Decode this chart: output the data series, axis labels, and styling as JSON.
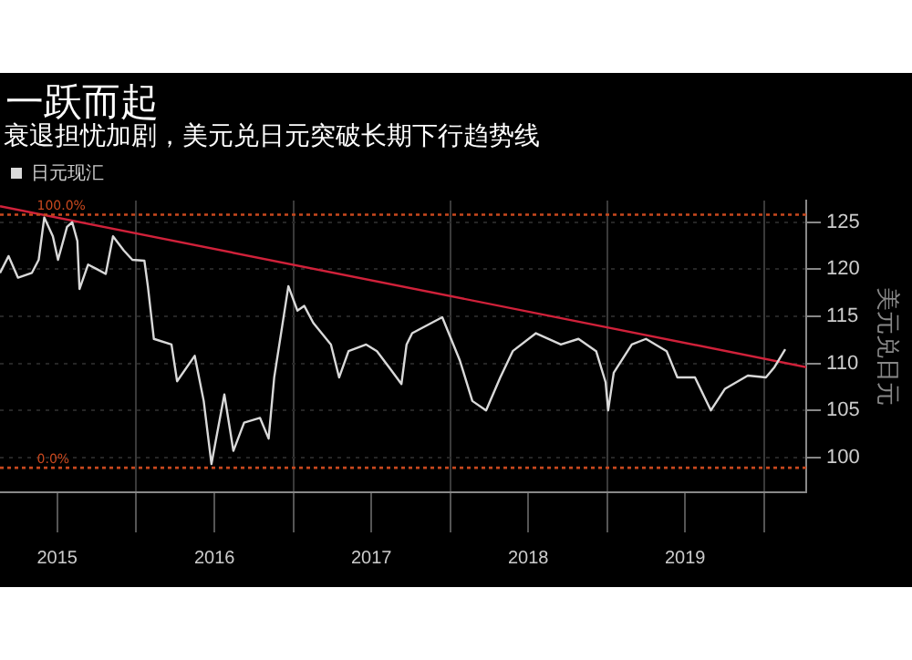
{
  "chart_data": {
    "type": "line",
    "title": "一跃而起",
    "subtitle": "衰退担忧加剧，美元兑日元突破长期下行趋势线",
    "ylabel": "美元兑日元",
    "legend": "top left",
    "grid": true,
    "marker": "none",
    "xlim": [
      "2015-02-18",
      "2020-04-08"
    ],
    "xticks": [
      {
        "value": "2015-07-01",
        "label": "2015"
      },
      {
        "value": "2016-01-01",
        "label": null
      },
      {
        "value": "2016-07-01",
        "label": "2016"
      },
      {
        "value": "2017-01-01",
        "label": null
      },
      {
        "value": "2017-07-01",
        "label": "2017"
      },
      {
        "value": "2018-01-01",
        "label": null
      },
      {
        "value": "2018-07-01",
        "label": "2018"
      },
      {
        "value": "2019-01-01",
        "label": null
      },
      {
        "value": "2019-07-01",
        "label": "2019"
      },
      {
        "value": "2020-01-01",
        "label": null
      }
    ],
    "ylim": [
      96.3,
      127.3
    ],
    "yticks": [
      100,
      105,
      110,
      115,
      120,
      125
    ],
    "ref_lines": [
      {
        "axis": "y",
        "value": 125.8,
        "color": "#c8481e",
        "line_style": "dotted"
      },
      {
        "axis": "y",
        "value": 98.9,
        "color": "#c8481e",
        "line_style": "dotted"
      }
    ],
    "annotations": [
      {
        "text": "100.0%",
        "x": "2015-05-15",
        "y": 125.8
      },
      {
        "text": "0.0%",
        "x": "2015-05-15",
        "y": 98.9
      }
    ],
    "series": [
      {
        "name": "日元现汇",
        "color": "#d9d9d9",
        "x": [
          "2015-02-18",
          "2015-03-10",
          "2015-04-01",
          "2015-05-03",
          "2015-05-19",
          "2015-06-01",
          "2015-06-21",
          "2015-07-03",
          "2015-07-24",
          "2015-08-05",
          "2015-08-17",
          "2015-08-22",
          "2015-09-11",
          "2015-10-02",
          "2015-10-22",
          "2015-11-08",
          "2015-12-03",
          "2015-12-23",
          "2016-01-20",
          "2016-01-28",
          "2016-02-11",
          "2016-03-23",
          "2016-04-05",
          "2016-05-16",
          "2016-06-06",
          "2016-06-24",
          "2016-07-24",
          "2016-08-14",
          "2016-09-08",
          "2016-10-15",
          "2016-11-04",
          "2016-11-17",
          "2016-12-20",
          "2017-01-10",
          "2017-01-26",
          "2017-02-16",
          "2017-03-29",
          "2017-04-17",
          "2017-05-09",
          "2017-06-19",
          "2017-07-14",
          "2017-08-11",
          "2017-09-09",
          "2017-09-21",
          "2017-10-04",
          "2017-12-13",
          "2018-01-23",
          "2018-02-21",
          "2018-03-25",
          "2018-04-27",
          "2018-05-26",
          "2018-07-19",
          "2018-09-15",
          "2018-10-26",
          "2018-12-06",
          "2018-12-28",
          "2019-01-03",
          "2019-01-16",
          "2019-02-27",
          "2019-04-01",
          "2019-05-19",
          "2019-06-13",
          "2019-07-24",
          "2019-08-30",
          "2019-10-02",
          "2019-11-24",
          "2020-01-05",
          "2020-01-25",
          "2020-02-19"
        ],
        "values": [
          119.6,
          121.4,
          119.1,
          119.6,
          121,
          125.5,
          123.5,
          121,
          124.5,
          125,
          123,
          117.9,
          120.5,
          120,
          119.5,
          123.5,
          122,
          121,
          120.9,
          118.2,
          112.6,
          112,
          108.1,
          110.8,
          106,
          99.3,
          106.7,
          100.7,
          103.7,
          104.2,
          102,
          108.5,
          118.2,
          115.6,
          116.1,
          114.3,
          112,
          108.5,
          111.3,
          112,
          111.3,
          109.6,
          107.8,
          112,
          113.2,
          114.9,
          110.3,
          106,
          105,
          108.5,
          111.3,
          113.2,
          112,
          112.6,
          111.3,
          108,
          105,
          109,
          112,
          112.6,
          111.3,
          108.5,
          108.5,
          105,
          107.3,
          108.7,
          108.5,
          109.6,
          111.5
        ]
      },
      {
        "color": "#d0213a",
        "x": [
          "2015-02-18",
          "2020-04-08"
        ],
        "values": [
          126.7,
          109.6
        ]
      }
    ]
  }
}
